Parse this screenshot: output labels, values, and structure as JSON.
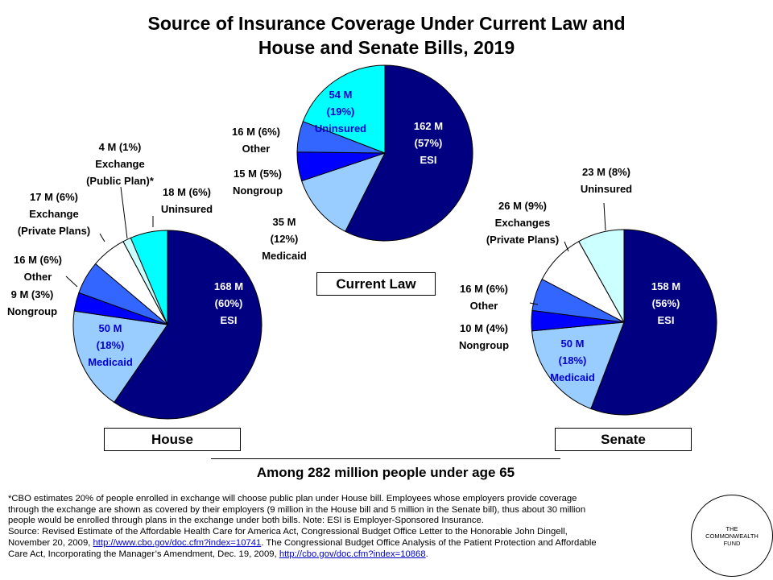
{
  "title_line1": "Source of Insurance Coverage Under Current Law and",
  "title_line2": "House and Senate Bills, 2019",
  "chart_data": [
    {
      "type": "pie",
      "panel": "Current Law",
      "slices": [
        {
          "name": "ESI",
          "value": 162,
          "pct": 57,
          "color": "#000080",
          "labels": [
            "162 M",
            "(57%)",
            "ESI"
          ]
        },
        {
          "name": "Medicaid",
          "value": 35,
          "pct": 12,
          "color": "#99ccff",
          "labels": [
            "35 M",
            "(12%)",
            "Medicaid"
          ]
        },
        {
          "name": "Nongroup",
          "value": 15,
          "pct": 5,
          "color": "#0000ff",
          "labels": [
            "15 M (5%)",
            "Nongroup"
          ]
        },
        {
          "name": "Other",
          "value": 16,
          "pct": 6,
          "color": "#3366ff",
          "labels": [
            "16 M (6%)",
            "Other"
          ]
        },
        {
          "name": "Uninsured",
          "value": 54,
          "pct": 19,
          "color": "#00ffff",
          "labels": [
            "54 M",
            "(19%)",
            "Uninsured"
          ]
        }
      ]
    },
    {
      "type": "pie",
      "panel": "House",
      "slices": [
        {
          "name": "ESI",
          "value": 168,
          "pct": 60,
          "color": "#000080",
          "labels": [
            "168 M",
            "(60%)",
            "ESI"
          ]
        },
        {
          "name": "Medicaid",
          "value": 50,
          "pct": 18,
          "color": "#99ccff",
          "labels": [
            "50 M",
            "(18%)",
            "Medicaid"
          ]
        },
        {
          "name": "Nongroup",
          "value": 9,
          "pct": 3,
          "color": "#0000ff",
          "labels": [
            "9 M (3%)",
            "Nongroup"
          ]
        },
        {
          "name": "Other",
          "value": 16,
          "pct": 6,
          "color": "#3366ff",
          "labels": [
            "16 M (6%)",
            "Other"
          ]
        },
        {
          "name": "Exchange (Private Plans)",
          "value": 17,
          "pct": 6,
          "color": "#ffffff",
          "labels": [
            "17 M (6%)",
            "Exchange",
            "(Private Plans)"
          ]
        },
        {
          "name": "Exchange (Public Plan)",
          "value": 4,
          "pct": 1,
          "color": "#ccffff",
          "labels": [
            "4 M (1%)",
            "Exchange",
            "(Public Plan)*"
          ]
        },
        {
          "name": "Uninsured",
          "value": 18,
          "pct": 6,
          "color": "#00ffff",
          "labels": [
            "18 M (6%)",
            "Uninsured"
          ]
        }
      ]
    },
    {
      "type": "pie",
      "panel": "Senate",
      "slices": [
        {
          "name": "ESI",
          "value": 158,
          "pct": 56,
          "color": "#000080",
          "labels": [
            "158 M",
            "(56%)",
            "ESI"
          ]
        },
        {
          "name": "Medicaid",
          "value": 50,
          "pct": 18,
          "color": "#99ccff",
          "labels": [
            "50 M",
            "(18%)",
            "Medicaid"
          ]
        },
        {
          "name": "Nongroup",
          "value": 10,
          "pct": 4,
          "color": "#0000ff",
          "labels": [
            "10 M (4%)",
            "Nongroup"
          ]
        },
        {
          "name": "Other",
          "value": 16,
          "pct": 6,
          "color": "#3366ff",
          "labels": [
            "16 M (6%)",
            "Other"
          ]
        },
        {
          "name": "Exchanges (Private Plans)",
          "value": 26,
          "pct": 9,
          "color": "#ffffff",
          "labels": [
            "26 M (9%)",
            "Exchanges",
            "(Private Plans)"
          ]
        },
        {
          "name": "Uninsured",
          "value": 23,
          "pct": 8,
          "color": "#ccffff",
          "labels": [
            "23 M (8%)",
            "Uninsured"
          ]
        }
      ]
    }
  ],
  "panel_labels": {
    "current": "Current Law",
    "house": "House",
    "senate": "Senate"
  },
  "among": "Among 282 million people under age 65",
  "footnote": {
    "line1": "*CBO estimates 20% of people enrolled in exchange will choose public plan under House bill. Employees whose employers provide coverage",
    "line2": "through the exchange are shown as covered by their employers (9 million in the House bill and 5 million in the Senate bill), thus about 30 million",
    "line3": "people would be enrolled through plans in the exchange under both bills. Note: ESI is Employer-Sponsored Insurance.",
    "line4": "Source: Revised Estimate of the Affordable Health Care for America Act, Congressional Budget Office Letter to the Honorable John Dingell,",
    "line5_pre": "November 20, 2009, ",
    "link1": "http://www.cbo.gov/doc.cfm?index=10741",
    "line5_post": ". The Congressional Budget Office Analysis of the Patient Protection and Affordable",
    "line6_pre": "Care Act, Incorporating the Manager’s Amendment,  Dec. 19, 2009, ",
    "link2": "http://cbo.gov/doc.cfm?index=10868",
    "line6_post": "."
  },
  "logo": {
    "line1": "THE",
    "line2": "COMMONWEALTH",
    "line3": "FUND"
  }
}
